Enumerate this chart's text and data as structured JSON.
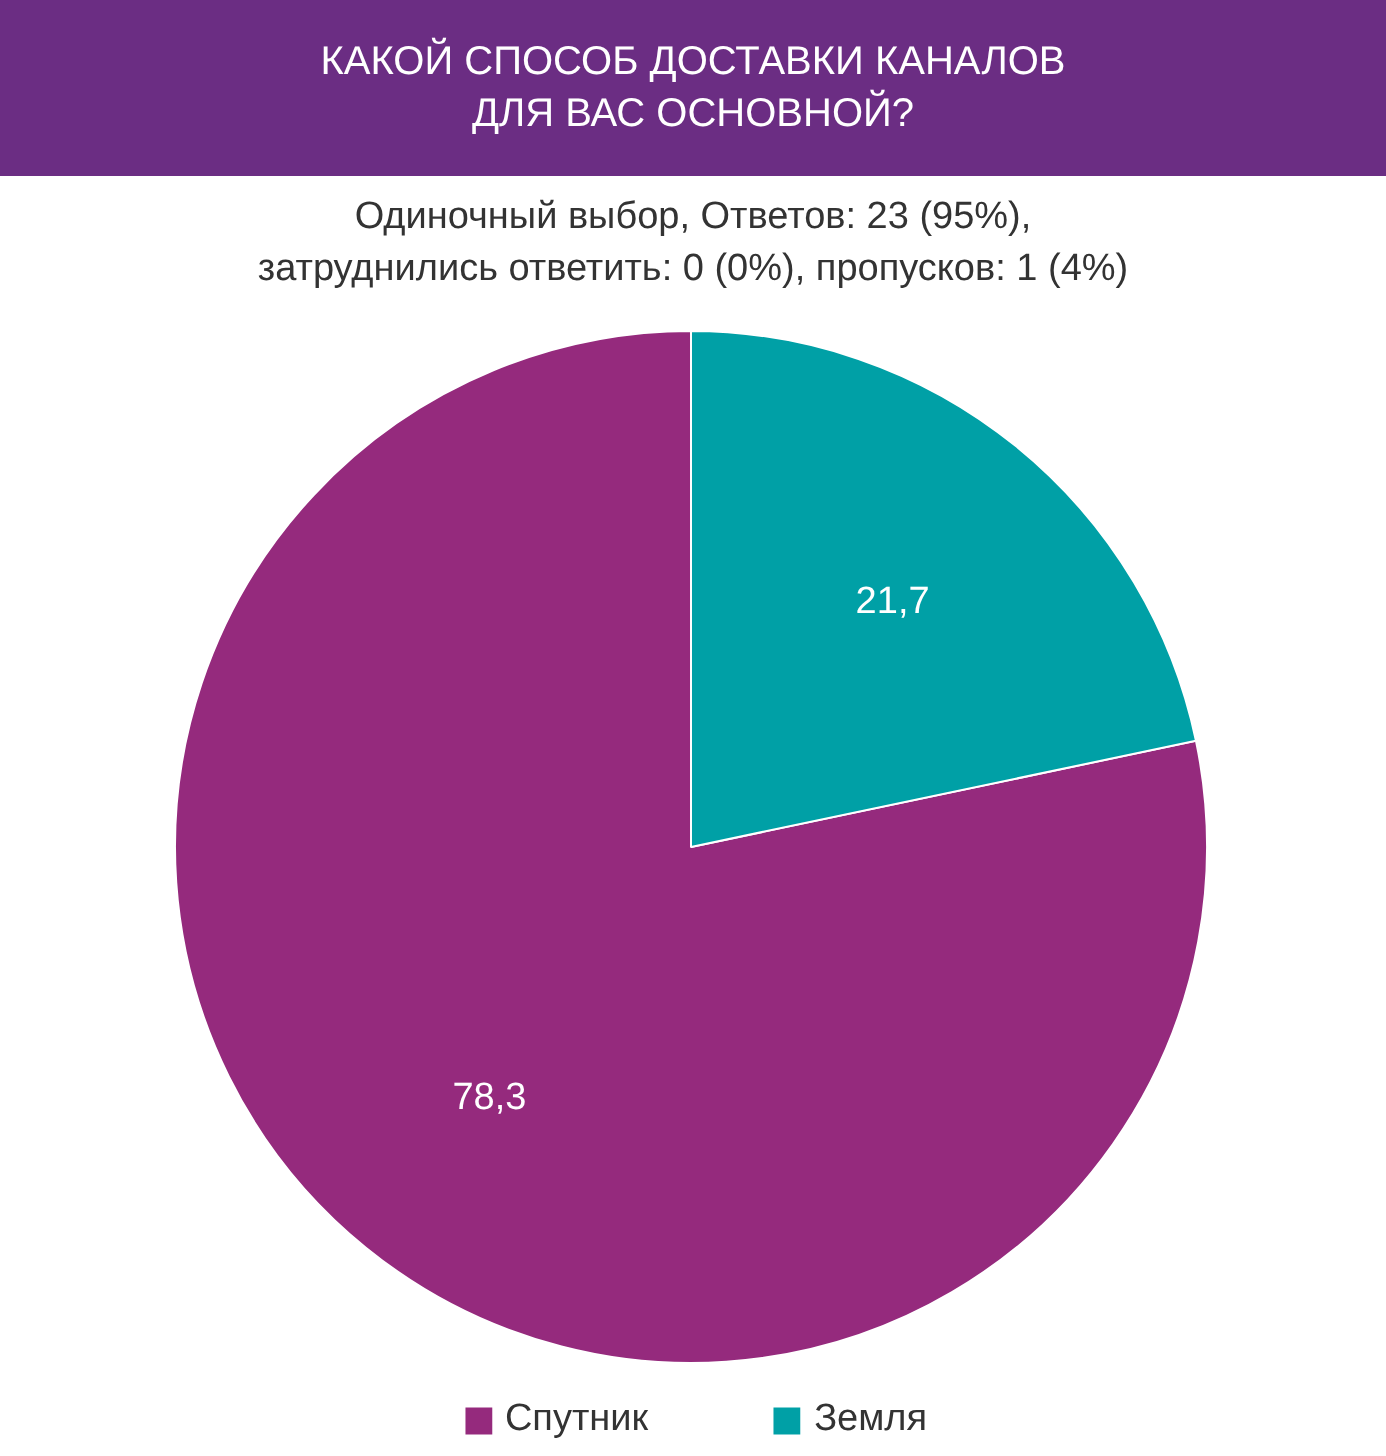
{
  "chart_data": {
    "type": "pie",
    "title": "КАКОЙ СПОСОБ ДОСТАВКИ КАНАЛОВ\nДЛЯ ВАС ОСНОВНОЙ?",
    "subtitle": "Одиночный выбор, Ответов: 23 (95%),\nзатруднились ответить: 0 (0%), пропусков: 1 (4%)",
    "categories": [
      "Спутник",
      "Земля"
    ],
    "values": [
      78.3,
      21.7
    ],
    "value_labels": [
      "78,3",
      "21,7"
    ],
    "colors": [
      "#952a7d",
      "#00a0a6"
    ],
    "legend": "bottom"
  }
}
